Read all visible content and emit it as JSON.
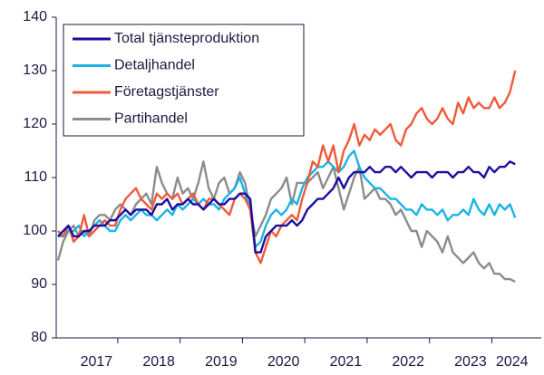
{
  "chart_data": {
    "type": "line",
    "categories": [
      null,
      null,
      null,
      null,
      null,
      null,
      "2017",
      null,
      null,
      null,
      null,
      null,
      null,
      null,
      null,
      null,
      null,
      null,
      "2018",
      null,
      null,
      null,
      null,
      null,
      null,
      null,
      null,
      null,
      null,
      null,
      "2019",
      null,
      null,
      null,
      null,
      null,
      null,
      null,
      null,
      null,
      null,
      null,
      "2020",
      null,
      null,
      null,
      null,
      null,
      null,
      null,
      null,
      null,
      null,
      null,
      "2021",
      null,
      null,
      null,
      null,
      null,
      null,
      null,
      null,
      null,
      null,
      null,
      "2022",
      null,
      null,
      null,
      null,
      null,
      null,
      null,
      null,
      null,
      null,
      null,
      "2023",
      null,
      null,
      null,
      null,
      null,
      null,
      null,
      "2024",
      null,
      null
    ],
    "series": [
      {
        "name": "Total tjänsteproduktion",
        "color": "#1a0fa0",
        "values": [
          99,
          100,
          101,
          99,
          99,
          100,
          100,
          101,
          101,
          101,
          102,
          102,
          103,
          104,
          103,
          104,
          104,
          104,
          103,
          105,
          105,
          106,
          104,
          105,
          105,
          106,
          105,
          105,
          104,
          105,
          106,
          105,
          105,
          106,
          106,
          107,
          107,
          106,
          96,
          96,
          99,
          100,
          101,
          101,
          101,
          102,
          101,
          102,
          104,
          105,
          106,
          106,
          107,
          108,
          110,
          108,
          110,
          111,
          111,
          111,
          112,
          111,
          111,
          112,
          112,
          111,
          112,
          111,
          110,
          111,
          111,
          111,
          110,
          111,
          111,
          111,
          110,
          111,
          111,
          112,
          111,
          111,
          110,
          112,
          111,
          112,
          112,
          113,
          112.5
        ]
      },
      {
        "name": "Detaljhandel",
        "color": "#1bb3e6",
        "values": [
          99,
          99,
          100,
          100,
          101,
          99,
          100,
          101,
          102,
          101,
          100,
          100,
          102,
          103,
          102,
          103,
          104,
          103,
          103,
          102,
          103,
          104,
          103,
          105,
          104,
          105,
          106,
          105,
          106,
          105,
          105,
          104,
          106,
          107,
          108,
          110,
          107,
          104,
          97,
          98,
          101,
          103,
          104,
          103,
          104,
          106,
          105,
          108,
          110,
          111,
          112,
          112,
          113,
          112,
          111,
          112,
          114,
          115,
          112,
          110,
          109,
          108,
          108,
          107,
          106,
          106,
          105,
          104,
          104,
          103,
          105,
          104,
          104,
          103,
          104,
          102,
          103,
          103,
          104,
          103,
          106,
          104,
          103,
          105,
          103,
          105,
          104,
          105,
          102.5
        ]
      },
      {
        "name": "Företagstjänster",
        "color": "#f05a3a",
        "values": [
          100,
          99,
          101,
          98,
          99,
          103,
          99,
          100,
          101,
          102,
          101,
          101,
          104,
          106,
          107,
          108,
          106,
          105,
          104,
          107,
          106,
          107,
          106,
          107,
          105,
          106,
          107,
          105,
          104,
          106,
          106,
          105,
          104,
          103,
          106,
          107,
          106,
          104,
          96,
          94,
          97,
          100,
          99,
          101,
          102,
          103,
          102,
          106,
          109,
          113,
          112,
          116,
          113,
          116,
          111,
          115,
          117,
          120,
          116,
          118,
          117,
          119,
          118,
          119,
          120,
          117,
          116,
          119,
          120,
          122,
          123,
          121,
          120,
          121,
          123,
          121,
          120,
          124,
          122,
          125,
          123,
          124,
          123,
          123,
          125,
          123,
          124,
          126,
          130
        ]
      },
      {
        "name": "Partihandel",
        "color": "#8c8c8c",
        "values": [
          94.5,
          98,
          100,
          101,
          99,
          100,
          99,
          102,
          103,
          103,
          102,
          104,
          105,
          104,
          103,
          105,
          106,
          107,
          105,
          112,
          109,
          107,
          106,
          110,
          107,
          108,
          106,
          109,
          113,
          108,
          106,
          109,
          110,
          107,
          108,
          111,
          109,
          104,
          99,
          101,
          103,
          106,
          107,
          108,
          110,
          105,
          109,
          109,
          109,
          110,
          111,
          108,
          110,
          112,
          108,
          104,
          107,
          110,
          112,
          106,
          107,
          108,
          106,
          106,
          105,
          103,
          104,
          102,
          100,
          100,
          97,
          100,
          99,
          98,
          96,
          99,
          96,
          95,
          94,
          95,
          96,
          94,
          93,
          94,
          92,
          92,
          91,
          91,
          90.5
        ]
      }
    ],
    "ylim": [
      80,
      140
    ],
    "yticks": [
      80,
      90,
      100,
      110,
      120,
      130,
      140
    ],
    "grid": false,
    "legend": "upper left"
  }
}
